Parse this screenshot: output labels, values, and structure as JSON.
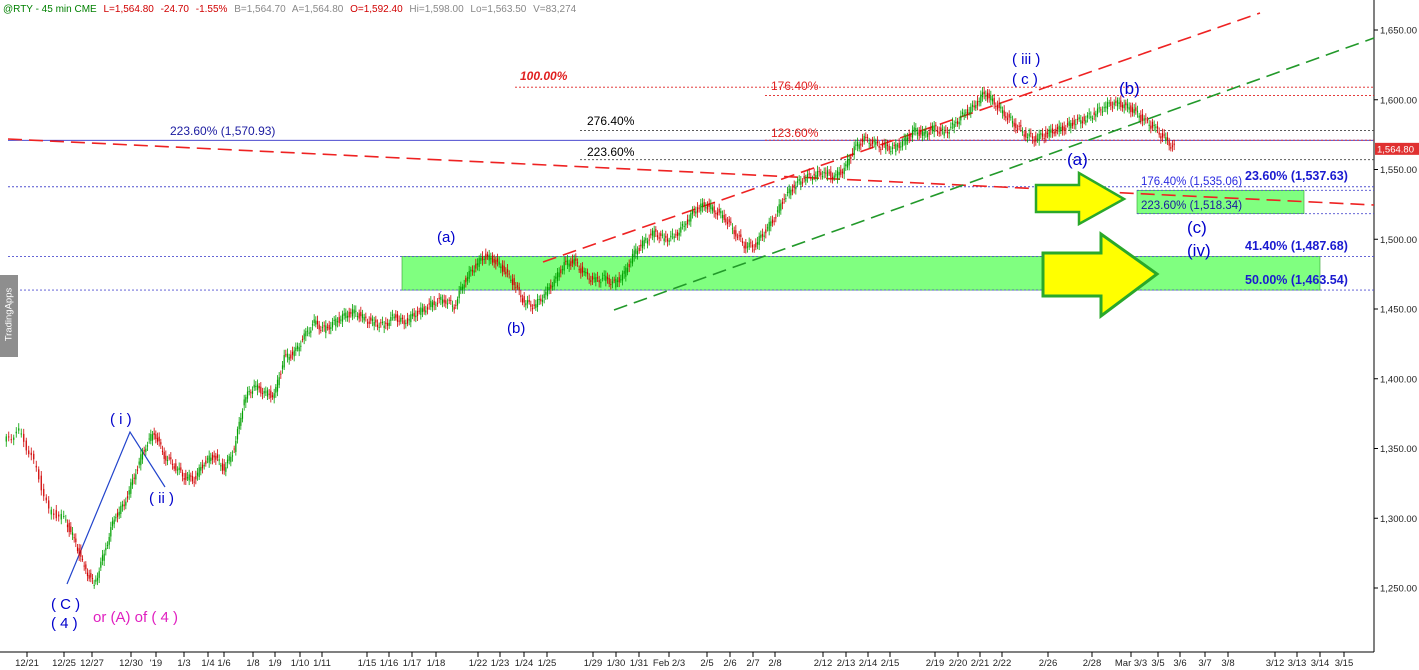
{
  "header": {
    "symbol": "@RTY - 45 min  CME",
    "last": "L=1,564.80",
    "change": "-24.70",
    "pct": "-1.55%",
    "bid": "B=1,564.70",
    "ask": "A=1,564.80",
    "open": "O=1,592.40",
    "high": "Hi=1,598.00",
    "low": "Lo=1,563.50",
    "volume": "V=83,274"
  },
  "side_tab": "TradingApps",
  "chart_data": {
    "type": "line",
    "title": "",
    "xlabel": "",
    "ylabel": "",
    "ylim": [
      1210,
      1665
    ],
    "y_ticks": [
      "1,650.00",
      "1,600.00",
      "1,550.00",
      "1,500.00",
      "1,450.00",
      "1,400.00",
      "1,350.00",
      "1,300.00",
      "1,250.00"
    ],
    "y_tick_values": [
      1650,
      1600,
      1550,
      1500,
      1450,
      1400,
      1350,
      1300,
      1250
    ],
    "x_ticks": [
      "12/21",
      "12/25",
      "12/27",
      "12/30",
      "'19",
      "1/3",
      "1/4",
      "1/6",
      "1/8",
      "1/9",
      "1/10",
      "1/11",
      "1/15",
      "1/16",
      "1/17",
      "1/18",
      "1/22",
      "1/23",
      "1/24",
      "1/25",
      "1/29",
      "1/30",
      "1/31",
      "Feb 2/3",
      "2/5",
      "2/6",
      "2/7",
      "2/8",
      "2/12",
      "2/13",
      "2/14",
      "2/15",
      "2/19",
      "2/20",
      "2/21",
      "2/22",
      "2/26",
      "2/28",
      "Mar 3/3",
      "3/5",
      "3/6",
      "3/7",
      "3/8",
      "3/12",
      "3/13",
      "3/14",
      "3/15"
    ],
    "last_price": "1,564.80",
    "last_value": 1564.8,
    "series": [
      {
        "x": [
          0,
          3,
          6,
          9,
          12,
          14,
          16,
          18,
          20,
          22,
          24,
          26,
          28,
          30,
          32,
          34,
          36,
          38,
          40,
          42,
          44,
          46,
          48,
          50,
          52,
          54,
          56,
          58,
          60,
          62,
          64,
          66,
          68,
          70,
          72,
          74,
          76,
          78,
          80,
          82,
          84,
          86,
          88,
          90,
          92,
          94,
          96,
          98,
          100,
          102,
          104,
          106,
          108,
          110,
          112,
          114,
          116,
          118,
          120,
          122,
          124,
          126,
          128,
          130,
          132,
          134,
          136,
          138,
          140,
          142,
          144,
          146,
          148,
          150,
          152,
          154,
          156,
          158,
          160,
          162,
          164,
          166,
          168,
          170,
          172,
          174,
          176,
          178,
          180,
          182,
          184,
          186,
          188,
          190,
          192,
          194,
          196,
          198,
          200,
          202,
          204,
          206,
          208,
          210,
          212,
          214,
          216,
          218,
          220,
          222,
          224,
          226,
          228,
          230,
          232,
          234
        ],
        "values": [
          1355,
          1362,
          1340,
          1305,
          1300,
          1285,
          1265,
          1252,
          1275,
          1300,
          1310,
          1330,
          1350,
          1362,
          1345,
          1338,
          1330,
          1328,
          1340,
          1345,
          1335,
          1350,
          1385,
          1395,
          1390,
          1388,
          1415,
          1418,
          1430,
          1440,
          1435,
          1440,
          1445,
          1448,
          1443,
          1440,
          1438,
          1445,
          1440,
          1446,
          1450,
          1455,
          1457,
          1452,
          1470,
          1480,
          1488,
          1485,
          1478,
          1468,
          1455,
          1452,
          1460,
          1470,
          1482,
          1484,
          1475,
          1470,
          1472,
          1468,
          1475,
          1490,
          1498,
          1505,
          1500,
          1502,
          1510,
          1520,
          1525,
          1521,
          1516,
          1506,
          1496,
          1495,
          1505,
          1515,
          1530,
          1538,
          1544,
          1546,
          1548,
          1545,
          1550,
          1565,
          1572,
          1568,
          1566,
          1565,
          1570,
          1578,
          1575,
          1580,
          1576,
          1582,
          1590,
          1595,
          1605,
          1598,
          1590,
          1583,
          1576,
          1572,
          1575,
          1578,
          1580,
          1584,
          1586,
          1590,
          1595,
          1598,
          1596,
          1592,
          1585,
          1580,
          1572,
          1565
        ]
      }
    ],
    "zones": [
      {
        "label": "",
        "y": [
          1463.54,
          1487.68
        ]
      },
      {
        "label": "",
        "y": [
          1518.34,
          1535.06
        ]
      }
    ],
    "level_lines": [
      {
        "label": "223.60% (1,570.93)",
        "value": 1570.93
      },
      {
        "label": "276.40%",
        "value": 1578
      },
      {
        "label": "223.60%",
        "value": 1557
      },
      {
        "label": "100.00%",
        "value": 1609
      },
      {
        "label": "176.40%",
        "value": 1603
      },
      {
        "label": "123.60%",
        "value": 1571
      },
      {
        "label": "23.60% (1,537.63)",
        "value": 1537.63
      },
      {
        "label": "176.40% (1,535.06)",
        "value": 1535.06
      },
      {
        "label": "223.60% (1,518.34)",
        "value": 1518.34
      },
      {
        "label": "41.40% (1,487.68)",
        "value": 1487.68
      },
      {
        "label": "50.00% (1,463.54)",
        "value": 1463.54
      }
    ],
    "wave_labels": [
      {
        "text": "( i )"
      },
      {
        "text": "( ii )"
      },
      {
        "text": "( C )"
      },
      {
        "text": "( 4 )"
      },
      {
        "text": "or (A) of ( 4 )"
      },
      {
        "text": "(a)"
      },
      {
        "text": "(b)"
      },
      {
        "text": "( iii )"
      },
      {
        "text": "( c )"
      },
      {
        "text": "(b)"
      },
      {
        "text": "(a)"
      },
      {
        "text": "(c)"
      },
      {
        "text": "(iv)"
      }
    ],
    "colors": {
      "up_candle": "#00a000",
      "down_candle": "#d00000",
      "zone": "#80ff80",
      "arrow": "#ffff00",
      "arrow_border": "#2aa82a",
      "wave_label": "#0000cc",
      "alt_label": "#e020c0",
      "resistance_line": "#ee2222",
      "support_line": "#22992a",
      "last_price_tag": "#e03030"
    }
  }
}
